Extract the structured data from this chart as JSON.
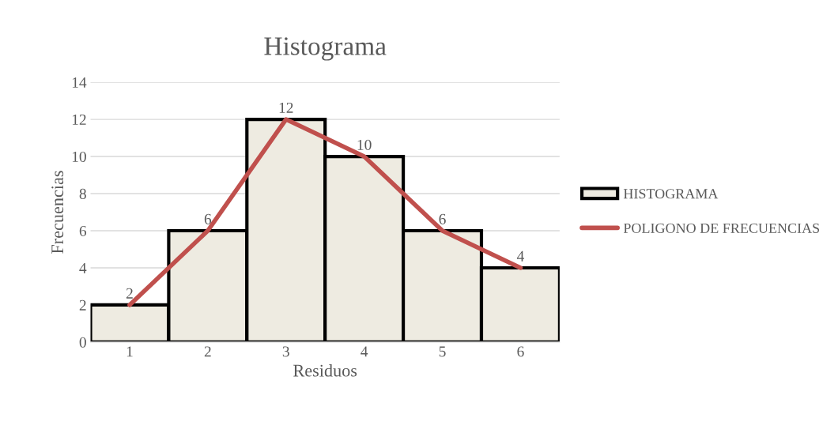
{
  "chart_data": {
    "type": "bar",
    "title": "Histograma",
    "xlabel": "Residuos",
    "ylabel": "Frecuencias",
    "categories": [
      "1",
      "2",
      "3",
      "4",
      "5",
      "6"
    ],
    "series": [
      {
        "name": "HISTOGRAMA",
        "color": "#eeebe1",
        "values": [
          2,
          6,
          12,
          10,
          6,
          4
        ],
        "value_labels": [
          "2",
          "6",
          "12",
          "10",
          "6",
          "4"
        ]
      },
      {
        "name": "POLIGONO DE FRECUENCIAS",
        "type": "line",
        "color": "#c0504d",
        "values": [
          2,
          6,
          12,
          10,
          6,
          4
        ]
      }
    ],
    "ylim": [
      0,
      14
    ],
    "yticks": [
      0,
      2,
      4,
      6,
      8,
      10,
      12,
      14
    ],
    "grid": "y",
    "legend": "right"
  }
}
